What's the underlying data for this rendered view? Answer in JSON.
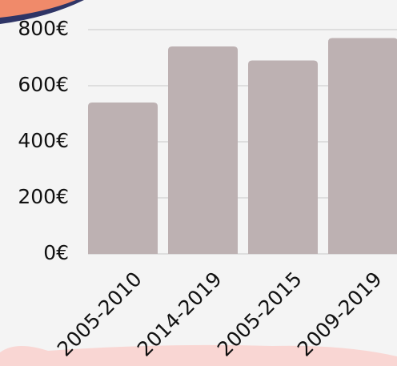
{
  "chart_data": {
    "type": "bar",
    "categories": [
      "2005-2010",
      "2014-2019",
      "2005-2015",
      "2009-2019"
    ],
    "values": [
      540,
      740,
      690,
      770
    ],
    "color": "#bdb1b2",
    "ylim": [
      0,
      800
    ],
    "yticks": [
      {
        "value": 0,
        "label": "0€"
      },
      {
        "value": 200,
        "label": "200€"
      },
      {
        "value": 400,
        "label": "400€"
      },
      {
        "value": 600,
        "label": "600€"
      },
      {
        "value": 800,
        "label": "800€"
      }
    ],
    "grid": true
  }
}
